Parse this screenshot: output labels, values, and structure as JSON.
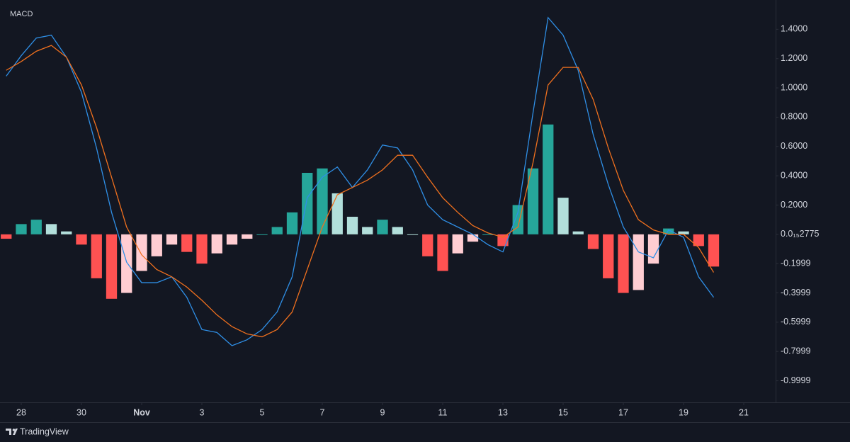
{
  "chart_data": {
    "type": "macd",
    "title": "MACD",
    "x": [
      -0.5,
      0,
      0.5,
      1,
      1.5,
      2,
      2.5,
      3,
      3.5,
      4,
      4.5,
      5,
      5.5,
      6,
      6.5,
      7,
      7.5,
      8,
      8.5,
      9,
      9.5,
      10,
      10.5,
      11,
      11.5,
      12,
      12.5,
      13,
      13.5,
      14,
      14.5,
      15,
      15.5,
      16,
      16.5,
      17,
      17.5,
      18,
      18.5,
      19,
      19.5,
      20,
      20.5,
      21,
      21.5,
      22,
      22.5,
      23
    ],
    "series": [
      {
        "color": "#2f8fe6",
        "values": [
          1.08,
          1.22,
          1.34,
          1.36,
          1.21,
          0.97,
          0.59,
          0.15,
          -0.19,
          -0.33,
          -0.33,
          -0.29,
          -0.43,
          -0.65,
          -0.67,
          -0.76,
          -0.72,
          -0.65,
          -0.53,
          -0.29,
          0.25,
          0.39,
          0.46,
          0.32,
          0.44,
          0.61,
          0.59,
          0.44,
          0.2,
          0.1,
          0.05,
          0.0,
          -0.07,
          -0.12,
          0.15,
          0.83,
          1.48,
          1.36,
          1.12,
          0.68,
          0.34,
          0.05,
          -0.12,
          -0.16,
          0.03,
          -0.02,
          -0.29,
          -0.43
        ]
      },
      {
        "color": "#f0701e",
        "values": [
          1.12,
          1.18,
          1.25,
          1.29,
          1.21,
          1.02,
          0.73,
          0.39,
          0.05,
          -0.14,
          -0.24,
          -0.29,
          -0.36,
          -0.45,
          -0.55,
          -0.63,
          -0.68,
          -0.7,
          -0.65,
          -0.53,
          -0.24,
          0.05,
          0.27,
          0.32,
          0.37,
          0.44,
          0.54,
          0.54,
          0.39,
          0.25,
          0.15,
          0.06,
          0.01,
          -0.02,
          0.05,
          0.49,
          1.02,
          1.14,
          1.14,
          0.92,
          0.59,
          0.3,
          0.1,
          0.03,
          0.0,
          0.0,
          -0.09,
          -0.26
        ]
      }
    ],
    "histogram": {
      "values": [
        -0.03,
        0.07,
        0.1,
        0.07,
        0.02,
        -0.07,
        -0.3,
        -0.44,
        -0.4,
        -0.25,
        -0.15,
        -0.07,
        -0.12,
        -0.2,
        -0.13,
        -0.07,
        -0.03,
        0.0,
        0.05,
        0.15,
        0.42,
        0.45,
        0.28,
        0.12,
        0.05,
        0.1,
        0.05,
        0.0,
        -0.15,
        -0.25,
        -0.13,
        -0.05,
        0.0,
        -0.08,
        0.2,
        0.45,
        0.75,
        0.25,
        0.02,
        -0.1,
        -0.3,
        -0.4,
        -0.38,
        -0.2,
        0.04,
        0.02,
        -0.08,
        -0.22
      ],
      "colors": {
        "up_grow": "#26a69a",
        "up_fall": "#b2dfdb",
        "down_grow": "#ff5252",
        "down_fall": "#ffcdd2"
      }
    },
    "xlim": [
      -0.5,
      25.0
    ],
    "xticks": [
      {
        "value": 0,
        "label": "28"
      },
      {
        "value": 2,
        "label": "30"
      },
      {
        "value": 4,
        "label": "Nov"
      },
      {
        "value": 6,
        "label": "3"
      },
      {
        "value": 8,
        "label": "5"
      },
      {
        "value": 10,
        "label": "7"
      },
      {
        "value": 12,
        "label": "9"
      },
      {
        "value": 14,
        "label": "11"
      },
      {
        "value": 16,
        "label": "13"
      },
      {
        "value": 18,
        "label": "15"
      },
      {
        "value": 20,
        "label": "17"
      },
      {
        "value": 22,
        "label": "19"
      },
      {
        "value": 24,
        "label": "21"
      }
    ],
    "ylim": [
      -1.147,
      1.6
    ],
    "yticks": [
      {
        "value": 1.4,
        "label": "1.4000"
      },
      {
        "value": 1.2,
        "label": "1.2000"
      },
      {
        "value": 1.0,
        "label": "1.0000"
      },
      {
        "value": 0.8,
        "label": "0.8000"
      },
      {
        "value": 0.6,
        "label": "0.6000"
      },
      {
        "value": 0.4,
        "label": "0.4000"
      },
      {
        "value": 0.2,
        "label": "0.2000"
      },
      {
        "value": 2.775e-16,
        "label": "0.0₁₅2775"
      },
      {
        "value": -0.1999,
        "label": "-0.1999"
      },
      {
        "value": -0.3999,
        "label": "-0.3999"
      },
      {
        "value": -0.5999,
        "label": "-0.5999"
      },
      {
        "value": -0.7999,
        "label": "-0.7999"
      },
      {
        "value": -0.9999,
        "label": "-0.9999"
      }
    ],
    "footer": "TradingView"
  }
}
